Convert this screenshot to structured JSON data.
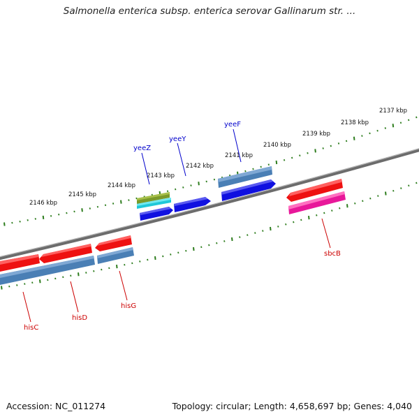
{
  "header": {
    "title": "Salmonella enterica subsp. enterica serovar Gallinarum str. ..."
  },
  "footer": {
    "accession": "Accession: NC_011274",
    "summary": "Topology: circular; Length: 4,658,697 bp; Genes: 4,040"
  },
  "scale": {
    "unit": "kbp",
    "ticks": [
      "2137 kbp",
      "2138 kbp",
      "2139 kbp",
      "2140 kbp",
      "2141 kbp",
      "2142 kbp",
      "2143 kbp",
      "2144 kbp",
      "2145 kbp",
      "2146 kbp"
    ]
  },
  "colors": {
    "backbone": "#808080",
    "tick_marks": "#2e7d1e",
    "forward_label": "#0000cc",
    "reverse_label": "#cc0000",
    "gene_red": "#ee1111",
    "gene_steel": "#4a7fb5",
    "gene_blue": "#1010e0",
    "gene_magenta": "#e8189a",
    "gene_olive": "#7a9a2a",
    "gene_cyan": "#20d0e0"
  },
  "genes": {
    "forward_labels": [
      "yeeZ",
      "yeeY",
      "yeeF"
    ],
    "reverse_labels": [
      "hisC",
      "hisD",
      "hisG",
      "sbcB"
    ]
  }
}
